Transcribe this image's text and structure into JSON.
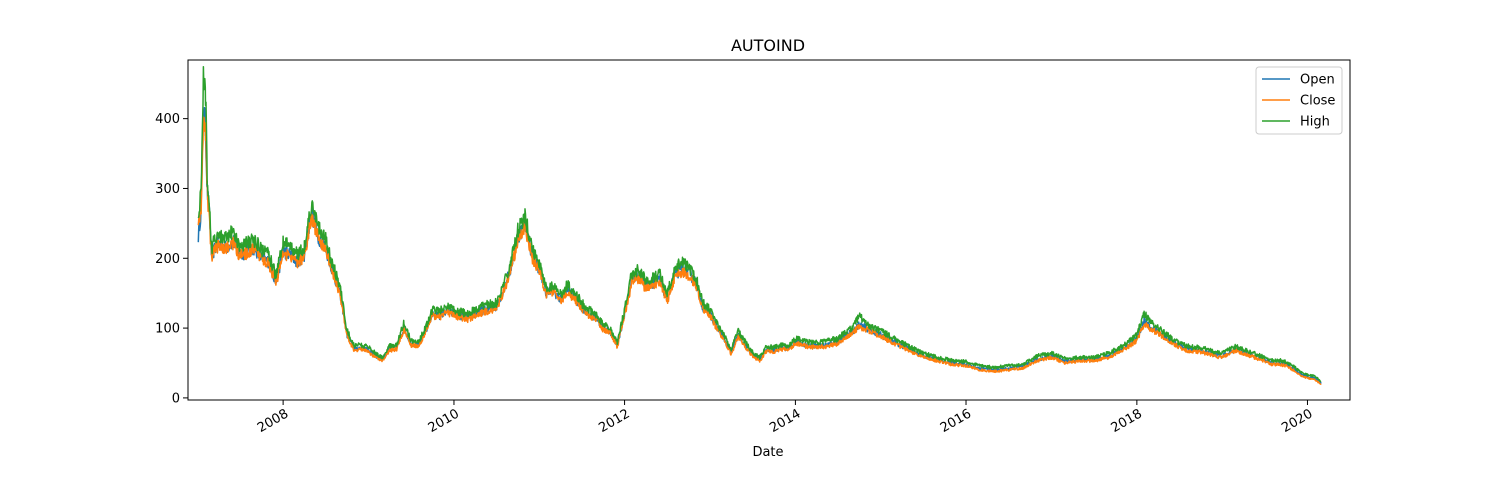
{
  "chart_data": {
    "type": "line",
    "title": "AUTOIND",
    "xlabel": "Date",
    "ylabel": "",
    "x_axis_type": "date",
    "xlim": [
      "2006-11-20",
      "2020-07-01"
    ],
    "ylim": [
      -3,
      484
    ],
    "x_ticks": [
      "2008",
      "2010",
      "2012",
      "2014",
      "2016",
      "2018",
      "2020"
    ],
    "y_ticks": [
      0,
      100,
      200,
      300,
      400
    ],
    "grid": false,
    "legend_position": "top-right",
    "x": [
      "2007-01-03",
      "2007-01-15",
      "2007-01-25",
      "2007-02-03",
      "2007-02-10",
      "2007-02-20",
      "2007-03-01",
      "2007-03-10",
      "2007-03-20",
      "2007-04-01",
      "2007-05-01",
      "2007-06-01",
      "2007-07-01",
      "2007-08-01",
      "2007-09-01",
      "2007-10-01",
      "2007-11-01",
      "2007-12-01",
      "2008-01-01",
      "2008-02-01",
      "2008-03-01",
      "2008-04-01",
      "2008-05-01",
      "2008-06-01",
      "2008-07-01",
      "2008-08-01",
      "2008-09-01",
      "2008-10-01",
      "2008-11-01",
      "2008-12-01",
      "2009-01-01",
      "2009-02-01",
      "2009-03-01",
      "2009-04-01",
      "2009-05-01",
      "2009-06-01",
      "2009-07-01",
      "2009-08-01",
      "2009-09-01",
      "2009-10-01",
      "2009-11-01",
      "2009-12-01",
      "2010-01-01",
      "2010-03-01",
      "2010-05-01",
      "2010-07-01",
      "2010-08-01",
      "2010-09-01",
      "2010-10-01",
      "2010-11-01",
      "2010-12-01",
      "2011-01-01",
      "2011-02-01",
      "2011-03-01",
      "2011-04-01",
      "2011-05-01",
      "2011-06-01",
      "2011-07-01",
      "2011-08-01",
      "2011-09-01",
      "2011-10-01",
      "2011-11-01",
      "2011-12-01",
      "2012-01-01",
      "2012-02-01",
      "2012-03-01",
      "2012-04-01",
      "2012-05-01",
      "2012-06-01",
      "2012-07-01",
      "2012-08-01",
      "2012-09-01",
      "2012-10-01",
      "2012-11-01",
      "2012-12-01",
      "2013-01-01",
      "2013-02-01",
      "2013-03-01",
      "2013-04-01",
      "2013-05-01",
      "2013-06-01",
      "2013-07-01",
      "2013-08-01",
      "2013-09-01",
      "2013-10-01",
      "2013-11-01",
      "2013-12-01",
      "2014-01-01",
      "2014-03-01",
      "2014-05-01",
      "2014-07-01",
      "2014-08-01",
      "2014-09-01",
      "2014-10-01",
      "2014-11-01",
      "2015-01-01",
      "2015-03-01",
      "2015-05-01",
      "2015-07-01",
      "2015-09-01",
      "2015-11-01",
      "2016-01-01",
      "2016-03-01",
      "2016-05-01",
      "2016-07-01",
      "2016-09-01",
      "2016-11-01",
      "2017-01-01",
      "2017-03-01",
      "2017-05-01",
      "2017-07-01",
      "2017-09-01",
      "2017-11-01",
      "2017-12-15",
      "2018-01-01",
      "2018-02-01",
      "2018-03-01",
      "2018-04-01",
      "2018-06-01",
      "2018-08-01",
      "2018-10-01",
      "2018-12-01",
      "2019-01-01",
      "2019-03-01",
      "2019-05-01",
      "2019-07-01",
      "2019-08-01",
      "2019-09-01",
      "2019-10-01",
      "2019-11-01",
      "2019-12-01",
      "2020-01-01",
      "2020-02-01",
      "2020-02-28"
    ],
    "series": [
      {
        "name": "Open",
        "color": "#1f77b4",
        "values": [
          232,
          270,
          420,
          385,
          300,
          260,
          205,
          210,
          218,
          220,
          215,
          225,
          205,
          210,
          215,
          200,
          195,
          165,
          210,
          205,
          195,
          205,
          265,
          230,
          215,
          180,
          150,
          90,
          70,
          72,
          68,
          60,
          55,
          70,
          72,
          100,
          78,
          75,
          95,
          120,
          118,
          125,
          120,
          115,
          125,
          130,
          155,
          185,
          230,
          250,
          205,
          185,
          150,
          155,
          140,
          155,
          145,
          130,
          120,
          115,
          100,
          95,
          75,
          120,
          170,
          175,
          160,
          165,
          170,
          140,
          175,
          185,
          180,
          165,
          130,
          120,
          100,
          85,
          65,
          90,
          75,
          62,
          55,
          70,
          68,
          72,
          70,
          80,
          75,
          75,
          80,
          88,
          95,
          105,
          100,
          90,
          80,
          70,
          60,
          55,
          50,
          48,
          42,
          40,
          42,
          45,
          55,
          60,
          52,
          55,
          55,
          60,
          70,
          80,
          85,
          110,
          100,
          95,
          80,
          70,
          68,
          62,
          60,
          70,
          62,
          55,
          50,
          50,
          48,
          42,
          35,
          30,
          28,
          22
        ],
        "jitter": 0.06
      },
      {
        "name": "Close",
        "color": "#ff7f0e",
        "values": [
          255,
          268,
          400,
          380,
          295,
          255,
          200,
          208,
          216,
          218,
          213,
          222,
          203,
          208,
          213,
          198,
          193,
          163,
          206,
          203,
          192,
          203,
          260,
          228,
          213,
          178,
          148,
          88,
          68,
          70,
          66,
          58,
          54,
          68,
          70,
          98,
          76,
          73,
          93,
          118,
          116,
          122,
          118,
          113,
          122,
          128,
          152,
          182,
          226,
          246,
          202,
          182,
          148,
          152,
          138,
          152,
          142,
          128,
          118,
          113,
          98,
          93,
          73,
          118,
          166,
          171,
          156,
          161,
          166,
          138,
          171,
          181,
          176,
          161,
          128,
          118,
          98,
          83,
          63,
          88,
          73,
          60,
          53,
          68,
          66,
          70,
          68,
          78,
          73,
          73,
          78,
          86,
          93,
          102,
          98,
          88,
          78,
          68,
          58,
          53,
          48,
          46,
          40,
          38,
          40,
          43,
          53,
          58,
          50,
          53,
          53,
          58,
          68,
          78,
          83,
          106,
          98,
          93,
          78,
          68,
          66,
          60,
          58,
          68,
          60,
          53,
          48,
          48,
          46,
          40,
          33,
          28,
          26,
          20
        ],
        "jitter": 0.055
      },
      {
        "name": "High",
        "color": "#2ca02c",
        "values": [
          265,
          290,
          465,
          440,
          320,
          270,
          215,
          222,
          228,
          232,
          228,
          238,
          218,
          222,
          226,
          212,
          206,
          175,
          222,
          218,
          206,
          216,
          280,
          242,
          226,
          190,
          158,
          96,
          74,
          76,
          72,
          64,
          58,
          74,
          76,
          108,
          82,
          80,
          100,
          126,
          124,
          132,
          126,
          120,
          132,
          136,
          162,
          194,
          240,
          262,
          214,
          194,
          158,
          162,
          148,
          162,
          152,
          136,
          126,
          120,
          106,
          100,
          80,
          126,
          178,
          184,
          168,
          172,
          178,
          148,
          184,
          196,
          188,
          172,
          136,
          126,
          106,
          90,
          70,
          96,
          80,
          66,
          58,
          74,
          72,
          76,
          74,
          85,
          80,
          80,
          85,
          94,
          100,
          118,
          106,
          96,
          85,
          74,
          64,
          58,
          54,
          52,
          46,
          44,
          46,
          48,
          60,
          64,
          56,
          58,
          58,
          64,
          74,
          85,
          90,
          122,
          108,
          100,
          85,
          74,
          72,
          66,
          64,
          74,
          66,
          58,
          54,
          54,
          52,
          46,
          37,
          33,
          31,
          24
        ],
        "jitter": 0.06
      }
    ]
  }
}
